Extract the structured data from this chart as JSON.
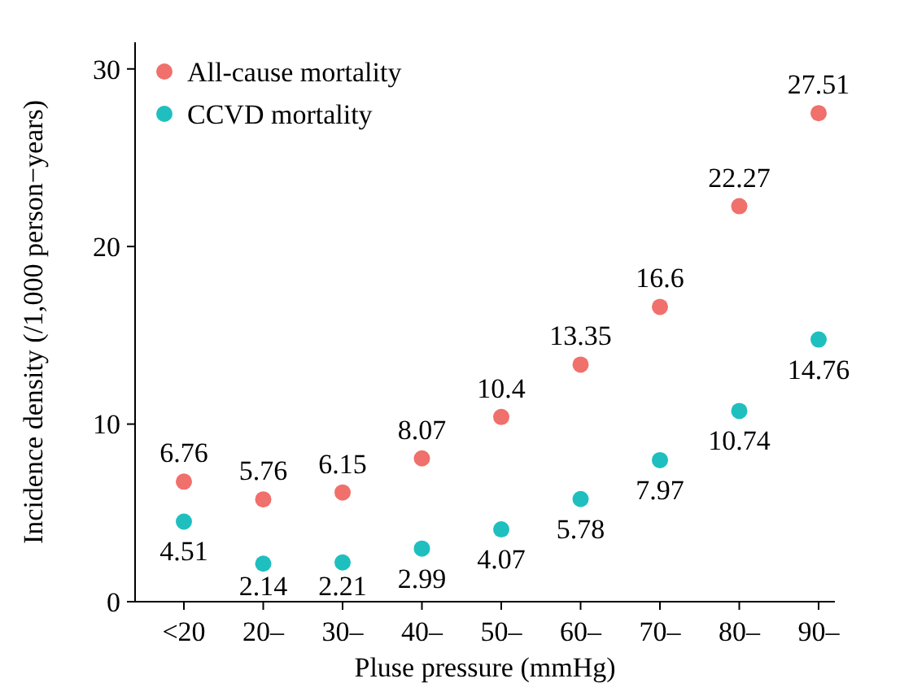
{
  "chart_data": {
    "type": "scatter",
    "xlabel": "Pluse pressure (mmHg)",
    "ylabel": "Incidence density (/1,000 person−years)",
    "categories": [
      "<20",
      "20–",
      "30–",
      "40–",
      "50–",
      "60–",
      "70–",
      "80–",
      "90–"
    ],
    "series": [
      {
        "name": "All-cause mortality",
        "color": "#f0706c",
        "values": [
          6.76,
          5.76,
          6.15,
          8.07,
          10.4,
          13.35,
          16.6,
          22.27,
          27.51
        ]
      },
      {
        "name": "CCVD mortality",
        "color": "#1fbfbf",
        "values": [
          4.51,
          2.14,
          2.21,
          2.99,
          4.07,
          5.78,
          7.97,
          10.74,
          14.76
        ]
      }
    ],
    "ylim": [
      0,
      31.5
    ],
    "yticks": [
      0,
      10,
      20,
      30
    ],
    "data_labels": true,
    "legend": "top left",
    "marker": "circle",
    "grid": false
  }
}
